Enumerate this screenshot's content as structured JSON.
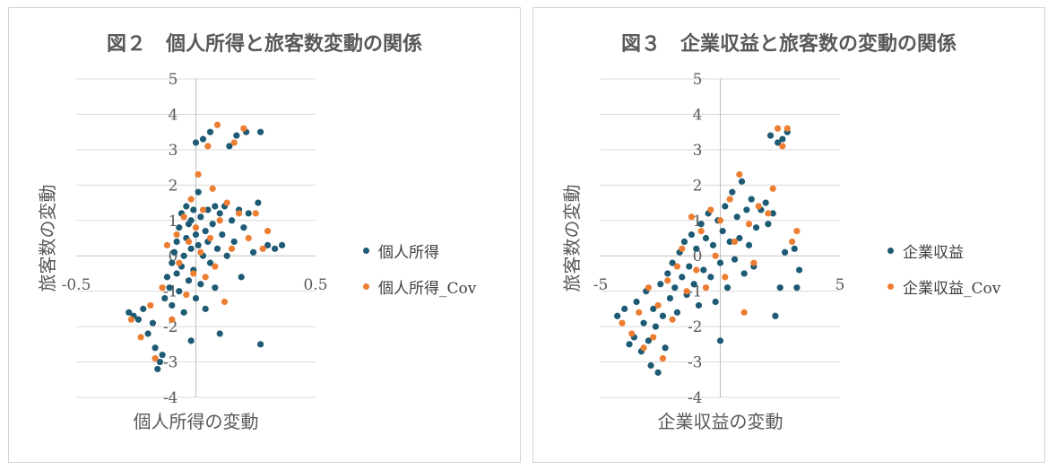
{
  "charts": [
    {
      "title": "図２　個人所得と旅客数変動の関係",
      "series_a_name": "個人所得",
      "series_b_name": "個人所得_Cov",
      "xlabel": "個人所得の変動",
      "ylabel": "旅客数の変動",
      "x_tick_labels": [
        "-0.5",
        "0.5"
      ],
      "y_tick_labels": [
        "5",
        "4",
        "3",
        "2",
        "1",
        "0",
        "-1",
        "-2",
        "-3",
        "-4"
      ]
    },
    {
      "title": "図３　企業収益と旅客数の変動の関係",
      "series_a_name": "企業収益",
      "series_b_name": "企業収益_Cov",
      "xlabel": "企業収益の変動",
      "ylabel": "旅客数の変動",
      "x_tick_labels": [
        "-5",
        "5"
      ],
      "y_tick_labels": [
        "5",
        "4",
        "3",
        "2",
        "1",
        "0",
        "-1",
        "-2",
        "-3",
        "-4"
      ]
    }
  ],
  "colors": {
    "series_a": "#1d5a73",
    "series_b": "#ed7d31"
  },
  "chart_data": [
    {
      "type": "scatter",
      "title": "図２　個人所得と旅客数変動の関係",
      "xlabel": "個人所得の変動",
      "ylabel": "旅客数の変動",
      "xlim": [
        -0.5,
        0.5
      ],
      "ylim": [
        -4,
        5
      ],
      "grid": true,
      "legend": "right",
      "series": [
        {
          "name": "個人所得",
          "points": [
            [
              -0.28,
              -1.6
            ],
            [
              -0.26,
              -1.7
            ],
            [
              -0.24,
              -1.8
            ],
            [
              -0.22,
              -1.5
            ],
            [
              -0.2,
              -2.2
            ],
            [
              -0.18,
              -1.9
            ],
            [
              -0.17,
              -2.6
            ],
            [
              -0.16,
              -3.2
            ],
            [
              -0.15,
              -3.0
            ],
            [
              -0.14,
              -2.8
            ],
            [
              -0.13,
              -1.2
            ],
            [
              -0.12,
              -0.6
            ],
            [
              -0.11,
              -0.9
            ],
            [
              -0.1,
              -1.4
            ],
            [
              -0.1,
              -0.2
            ],
            [
              -0.09,
              0.1
            ],
            [
              -0.08,
              -0.5
            ],
            [
              -0.08,
              0.4
            ],
            [
              -0.07,
              -1.0
            ],
            [
              -0.07,
              0.8
            ],
            [
              -0.06,
              -0.3
            ],
            [
              -0.06,
              1.2
            ],
            [
              -0.05,
              0.0
            ],
            [
              -0.05,
              -1.6
            ],
            [
              -0.04,
              0.5
            ],
            [
              -0.04,
              1.4
            ],
            [
              -0.03,
              -0.7
            ],
            [
              -0.03,
              0.9
            ],
            [
              -0.02,
              0.2
            ],
            [
              -0.02,
              1.0
            ],
            [
              -0.02,
              -2.4
            ],
            [
              -0.01,
              -0.4
            ],
            [
              -0.01,
              1.3
            ],
            [
              0.0,
              0.6
            ],
            [
              0.0,
              -1.2
            ],
            [
              0.0,
              3.2
            ],
            [
              0.01,
              0.3
            ],
            [
              0.01,
              1.8
            ],
            [
              0.02,
              -0.8
            ],
            [
              0.02,
              1.1
            ],
            [
              0.03,
              0.0
            ],
            [
              0.03,
              3.3
            ],
            [
              0.04,
              0.7
            ],
            [
              0.04,
              -1.5
            ],
            [
              0.05,
              1.3
            ],
            [
              0.05,
              0.4
            ],
            [
              0.06,
              -0.2
            ],
            [
              0.06,
              3.5
            ],
            [
              0.07,
              0.9
            ],
            [
              0.08,
              1.4
            ],
            [
              0.08,
              -0.9
            ],
            [
              0.09,
              0.2
            ],
            [
              0.1,
              1.2
            ],
            [
              0.1,
              -2.2
            ],
            [
              0.11,
              0.6
            ],
            [
              0.12,
              1.4
            ],
            [
              0.13,
              0.0
            ],
            [
              0.14,
              3.1
            ],
            [
              0.15,
              1.0
            ],
            [
              0.16,
              0.4
            ],
            [
              0.17,
              3.4
            ],
            [
              0.18,
              1.3
            ],
            [
              0.19,
              -0.6
            ],
            [
              0.2,
              0.8
            ],
            [
              0.21,
              3.5
            ],
            [
              0.22,
              1.2
            ],
            [
              0.24,
              0.1
            ],
            [
              0.26,
              1.5
            ],
            [
              0.27,
              3.5
            ],
            [
              0.27,
              -2.5
            ],
            [
              0.3,
              0.3
            ],
            [
              0.33,
              0.2
            ],
            [
              0.36,
              0.3
            ]
          ]
        },
        {
          "name": "個人所得_Cov",
          "points": [
            [
              -0.27,
              -1.8
            ],
            [
              -0.23,
              -2.3
            ],
            [
              -0.19,
              -1.4
            ],
            [
              -0.17,
              -2.9
            ],
            [
              -0.14,
              -0.9
            ],
            [
              -0.12,
              0.3
            ],
            [
              -0.1,
              -1.8
            ],
            [
              -0.08,
              0.6
            ],
            [
              -0.07,
              -0.2
            ],
            [
              -0.05,
              1.1
            ],
            [
              -0.04,
              -1.1
            ],
            [
              -0.03,
              0.4
            ],
            [
              -0.02,
              1.6
            ],
            [
              -0.01,
              -0.5
            ],
            [
              0.0,
              0.8
            ],
            [
              0.01,
              2.3
            ],
            [
              0.02,
              0.1
            ],
            [
              0.03,
              1.3
            ],
            [
              0.04,
              -0.6
            ],
            [
              0.05,
              3.1
            ],
            [
              0.06,
              0.5
            ],
            [
              0.07,
              1.9
            ],
            [
              0.08,
              -0.3
            ],
            [
              0.09,
              3.7
            ],
            [
              0.1,
              1.0
            ],
            [
              0.12,
              -1.3
            ],
            [
              0.13,
              1.5
            ],
            [
              0.15,
              0.2
            ],
            [
              0.16,
              3.2
            ],
            [
              0.18,
              1.2
            ],
            [
              0.2,
              3.6
            ],
            [
              0.22,
              0.5
            ],
            [
              0.25,
              1.2
            ],
            [
              0.28,
              0.2
            ],
            [
              0.3,
              0.7
            ]
          ]
        }
      ]
    },
    {
      "type": "scatter",
      "title": "図３　企業収益と旅客数の変動の関係",
      "xlabel": "企業収益の変動",
      "ylabel": "旅客数の変動",
      "xlim": [
        -5,
        5
      ],
      "ylim": [
        -4,
        5
      ],
      "grid": true,
      "legend": "right",
      "series": [
        {
          "name": "企業収益",
          "points": [
            [
              -4.3,
              -1.7
            ],
            [
              -4.0,
              -1.5
            ],
            [
              -3.8,
              -2.5
            ],
            [
              -3.6,
              -2.3
            ],
            [
              -3.5,
              -1.3
            ],
            [
              -3.3,
              -2.7
            ],
            [
              -3.2,
              -1.9
            ],
            [
              -3.1,
              -1.0
            ],
            [
              -3.0,
              -2.4
            ],
            [
              -2.9,
              -3.1
            ],
            [
              -2.8,
              -1.5
            ],
            [
              -2.7,
              -2.0
            ],
            [
              -2.6,
              -3.3
            ],
            [
              -2.5,
              -0.8
            ],
            [
              -2.4,
              -1.7
            ],
            [
              -2.3,
              -2.6
            ],
            [
              -2.2,
              -0.5
            ],
            [
              -2.1,
              -1.2
            ],
            [
              -2.0,
              -0.2
            ],
            [
              -1.9,
              -0.9
            ],
            [
              -1.8,
              -1.6
            ],
            [
              -1.7,
              0.1
            ],
            [
              -1.6,
              -0.6
            ],
            [
              -1.5,
              0.4
            ],
            [
              -1.4,
              -1.1
            ],
            [
              -1.3,
              -0.3
            ],
            [
              -1.2,
              0.6
            ],
            [
              -1.1,
              -0.8
            ],
            [
              -1.0,
              0.2
            ],
            [
              -0.9,
              -1.4
            ],
            [
              -0.8,
              0.9
            ],
            [
              -0.7,
              -0.4
            ],
            [
              -0.6,
              0.5
            ],
            [
              -0.5,
              1.2
            ],
            [
              -0.4,
              -0.6
            ],
            [
              -0.3,
              0.3
            ],
            [
              -0.2,
              -1.3
            ],
            [
              -0.1,
              1.0
            ],
            [
              0.0,
              -0.2
            ],
            [
              0.0,
              -2.4
            ],
            [
              0.1,
              0.7
            ],
            [
              0.2,
              1.4
            ],
            [
              0.3,
              -0.9
            ],
            [
              0.4,
              0.4
            ],
            [
              0.5,
              1.8
            ],
            [
              0.6,
              -0.1
            ],
            [
              0.7,
              1.1
            ],
            [
              0.8,
              0.5
            ],
            [
              0.9,
              2.1
            ],
            [
              1.0,
              -0.5
            ],
            [
              1.1,
              1.3
            ],
            [
              1.2,
              0.3
            ],
            [
              1.3,
              1.6
            ],
            [
              1.4,
              -0.3
            ],
            [
              1.5,
              0.8
            ],
            [
              1.7,
              1.3
            ],
            [
              1.9,
              1.5
            ],
            [
              2.0,
              0.9
            ],
            [
              2.1,
              3.4
            ],
            [
              2.2,
              1.2
            ],
            [
              2.3,
              -1.7
            ],
            [
              2.4,
              3.2
            ],
            [
              2.5,
              -0.9
            ],
            [
              2.6,
              3.3
            ],
            [
              2.7,
              0.1
            ],
            [
              2.8,
              3.5
            ],
            [
              3.1,
              0.2
            ],
            [
              3.2,
              -0.9
            ],
            [
              3.3,
              -0.4
            ]
          ]
        },
        {
          "name": "企業収益_Cov",
          "points": [
            [
              -4.1,
              -1.9
            ],
            [
              -3.7,
              -2.2
            ],
            [
              -3.4,
              -1.6
            ],
            [
              -3.2,
              -2.6
            ],
            [
              -3.0,
              -0.9
            ],
            [
              -2.8,
              -2.3
            ],
            [
              -2.6,
              -1.4
            ],
            [
              -2.4,
              -2.9
            ],
            [
              -2.2,
              -0.7
            ],
            [
              -2.0,
              -1.8
            ],
            [
              -1.8,
              -0.3
            ],
            [
              -1.6,
              0.2
            ],
            [
              -1.4,
              -1.0
            ],
            [
              -1.2,
              1.1
            ],
            [
              -1.0,
              -0.4
            ],
            [
              -0.8,
              0.7
            ],
            [
              -0.6,
              -0.9
            ],
            [
              -0.4,
              1.3
            ],
            [
              -0.2,
              0.0
            ],
            [
              0.0,
              1.0
            ],
            [
              0.2,
              -0.6
            ],
            [
              0.4,
              1.6
            ],
            [
              0.6,
              0.4
            ],
            [
              0.8,
              2.3
            ],
            [
              1.0,
              -1.6
            ],
            [
              1.2,
              0.9
            ],
            [
              1.4,
              -0.2
            ],
            [
              1.6,
              1.4
            ],
            [
              2.0,
              1.2
            ],
            [
              2.2,
              1.9
            ],
            [
              2.4,
              3.6
            ],
            [
              2.6,
              3.1
            ],
            [
              2.8,
              3.6
            ],
            [
              3.0,
              0.4
            ],
            [
              3.2,
              0.7
            ]
          ]
        }
      ]
    }
  ]
}
